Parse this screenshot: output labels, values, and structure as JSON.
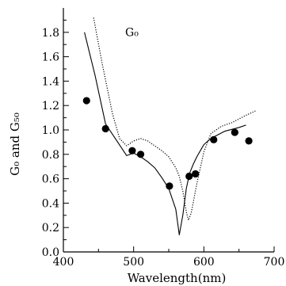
{
  "chart_data": {
    "type": "line",
    "xlabel": "Wavelength(nm)",
    "ylabel": "G₀ and G₅₀",
    "xlim": [
      400,
      700
    ],
    "ylim": [
      0.0,
      2.0
    ],
    "x_ticks": [
      400,
      500,
      600,
      700
    ],
    "y_ticks": [
      0.0,
      0.2,
      0.4,
      0.6,
      0.8,
      1.0,
      1.2,
      1.4,
      1.6,
      1.8
    ],
    "annotation": "G₀",
    "series": [
      {
        "style": "solid",
        "x": [
          430,
          445,
          460,
          475,
          490,
          500,
          510,
          520,
          530,
          540,
          550,
          560,
          565,
          570,
          575,
          580,
          585,
          590,
          600,
          610,
          630,
          650,
          660
        ],
        "y": [
          1.8,
          1.45,
          1.05,
          0.92,
          0.79,
          0.81,
          0.78,
          0.74,
          0.69,
          0.61,
          0.52,
          0.35,
          0.14,
          0.3,
          0.52,
          0.65,
          0.72,
          0.78,
          0.88,
          0.93,
          0.99,
          1.02,
          1.04
        ]
      },
      {
        "style": "dotted",
        "x": [
          443,
          455,
          470,
          480,
          490,
          500,
          510,
          520,
          530,
          540,
          550,
          560,
          565,
          570,
          575,
          578,
          582,
          590,
          600,
          610,
          625,
          640,
          660,
          675
        ],
        "y": [
          1.92,
          1.55,
          1.13,
          0.93,
          0.87,
          0.91,
          0.93,
          0.91,
          0.87,
          0.83,
          0.78,
          0.69,
          0.62,
          0.5,
          0.33,
          0.26,
          0.32,
          0.56,
          0.82,
          0.97,
          1.03,
          1.06,
          1.12,
          1.16
        ]
      },
      {
        "style": "markers",
        "x": [
          433,
          460,
          498,
          510,
          551,
          579,
          588,
          614,
          644,
          664
        ],
        "y": [
          1.24,
          1.01,
          0.83,
          0.8,
          0.54,
          0.62,
          0.64,
          0.92,
          0.98,
          0.91
        ]
      }
    ]
  }
}
